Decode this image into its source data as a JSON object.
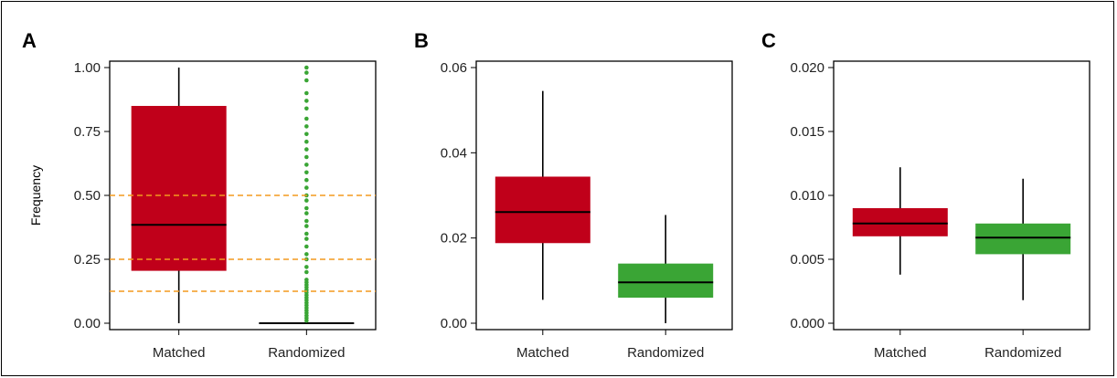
{
  "colors": {
    "matched": "#C0001A",
    "randomized": "#3AA535",
    "reference_line": "#F39A1E",
    "median": "#000000"
  },
  "chart_data": [
    {
      "type": "box",
      "panel": "A",
      "ylabel": "Frequency",
      "ylim": [
        -0.025,
        1.025
      ],
      "yticks": [
        0,
        0.25,
        0.5,
        0.75,
        1.0
      ],
      "ytick_labels": [
        "0.00",
        "0.25",
        "0.50",
        "0.75",
        "1.00"
      ],
      "categories": [
        "Matched",
        "Randomized"
      ],
      "reference_lines": [
        0.5,
        0.25,
        0.125
      ],
      "boxes": [
        {
          "category": "Matched",
          "whisker_low": 0.0,
          "q1": 0.205,
          "median": 0.385,
          "q3": 0.85,
          "whisker_high": 1.0
        },
        {
          "category": "Randomized",
          "whisker_low": 0.0,
          "q1": 0.0,
          "median": 0.0,
          "q3": 0.0,
          "whisker_high": 0.0
        }
      ],
      "outliers": [
        {
          "category": "Randomized",
          "values": [
            0.01,
            0.02,
            0.03,
            0.04,
            0.05,
            0.06,
            0.07,
            0.08,
            0.09,
            0.1,
            0.11,
            0.12,
            0.13,
            0.14,
            0.15,
            0.16,
            0.17,
            0.2,
            0.22,
            0.25,
            0.27,
            0.3,
            0.33,
            0.35,
            0.38,
            0.4,
            0.43,
            0.45,
            0.48,
            0.5,
            0.53,
            0.56,
            0.59,
            0.62,
            0.65,
            0.68,
            0.71,
            0.74,
            0.77,
            0.8,
            0.84,
            0.87,
            0.9,
            0.95,
            0.98,
            1.0
          ]
        }
      ]
    },
    {
      "type": "box",
      "panel": "B",
      "ylim": [
        -0.0015,
        0.0615
      ],
      "yticks": [
        0,
        0.02,
        0.04,
        0.06
      ],
      "ytick_labels": [
        "0.00",
        "0.02",
        "0.04",
        "0.06"
      ],
      "categories": [
        "Matched",
        "Randomized"
      ],
      "boxes": [
        {
          "category": "Matched",
          "whisker_low": 0.0055,
          "q1": 0.0188,
          "median": 0.0261,
          "q3": 0.0344,
          "whisker_high": 0.0545
        },
        {
          "category": "Randomized",
          "whisker_low": 0.0,
          "q1": 0.006,
          "median": 0.0096,
          "q3": 0.014,
          "whisker_high": 0.0254
        }
      ]
    },
    {
      "type": "box",
      "panel": "C",
      "ylim": [
        -0.0005,
        0.0205
      ],
      "yticks": [
        0,
        0.005,
        0.01,
        0.015,
        0.02
      ],
      "ytick_labels": [
        "0.000",
        "0.005",
        "0.010",
        "0.015",
        "0.020"
      ],
      "categories": [
        "Matched",
        "Randomized"
      ],
      "boxes": [
        {
          "category": "Matched",
          "whisker_low": 0.0038,
          "q1": 0.0068,
          "median": 0.0078,
          "q3": 0.009,
          "whisker_high": 0.0122
        },
        {
          "category": "Randomized",
          "whisker_low": 0.0018,
          "q1": 0.0054,
          "median": 0.0067,
          "q3": 0.0078,
          "whisker_high": 0.0113
        }
      ]
    }
  ]
}
